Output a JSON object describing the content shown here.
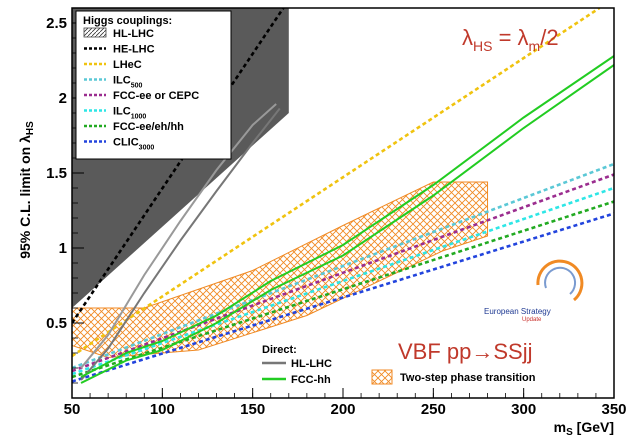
{
  "chart_data": {
    "type": "line",
    "xlabel": "m",
    "xlabel_sub": "S",
    "xlabel_unit": " [GeV]",
    "ylabel": "95% C.L. limit on λ",
    "ylabel_sub": "HS",
    "xlim": [
      50,
      350
    ],
    "ylim": [
      0,
      2.6
    ],
    "x_ticks": [
      "50",
      "100",
      "150",
      "200",
      "250",
      "300",
      "350"
    ],
    "y_ticks": [
      "0.5",
      "1",
      "1.5",
      "2",
      "2.5"
    ],
    "grid": false,
    "annotation_top": {
      "lambda": "λ",
      "hs": "HS",
      "eq": " = λ",
      "m": "m",
      "tail": "/2"
    },
    "annotation_vbf": "VBF pp→SSjj",
    "logo": {
      "line1": "European Strategy",
      "line2": "Update"
    },
    "legend_couplings": {
      "title": "Higgs couplings:",
      "entries": [
        {
          "label": "HL-LHC",
          "sub": "",
          "color": "#666666",
          "style": "hatch"
        },
        {
          "label": "HE-LHC",
          "sub": "",
          "color": "#000000",
          "style": "dotted"
        },
        {
          "label": "LHeC",
          "sub": "",
          "color": "#f0c30f",
          "style": "dotted"
        },
        {
          "label": "ILC",
          "sub": "500",
          "color": "#5bc8d6",
          "style": "dotted"
        },
        {
          "label": "FCC-ee or CEPC",
          "sub": "",
          "color": "#9b2d8f",
          "style": "dotted"
        },
        {
          "label": "ILC",
          "sub": "1000",
          "color": "#2ee6e6",
          "style": "dotted"
        },
        {
          "label": "FCC-ee/eh/hh",
          "sub": "",
          "color": "#22aa22",
          "style": "dotted"
        },
        {
          "label": "CLIC",
          "sub": "3000",
          "color": "#2244dd",
          "style": "dotted"
        }
      ]
    },
    "legend_direct": {
      "title": "Direct:",
      "entries": [
        {
          "label": "HL-LHC",
          "color": "#777777"
        },
        {
          "label": "FCC-hh",
          "color": "#22cc22"
        }
      ]
    },
    "legend_phase": {
      "label": "Two-step phase transition",
      "color": "#f08a24"
    },
    "series": [
      {
        "name": "HE-LHC",
        "color": "#000000",
        "dash": "dot",
        "x": [
          50,
          167
        ],
        "y": [
          0.5,
          2.6
        ]
      },
      {
        "name": "LHeC",
        "color": "#f0c30f",
        "dash": "dot",
        "x": [
          50,
          342
        ],
        "y": [
          0.28,
          2.6
        ]
      },
      {
        "name": "ILC500",
        "color": "#5bc8d6",
        "dash": "dot",
        "x": [
          50,
          350
        ],
        "y": [
          0.2,
          1.56
        ]
      },
      {
        "name": "FCC-ee or CEPC",
        "color": "#9b2d8f",
        "dash": "dot",
        "x": [
          50,
          350
        ],
        "y": [
          0.18,
          1.49
        ]
      },
      {
        "name": "ILC1000",
        "color": "#2ee6e6",
        "dash": "dot",
        "x": [
          50,
          350
        ],
        "y": [
          0.16,
          1.4
        ]
      },
      {
        "name": "FCC-ee/eh/hh",
        "color": "#22aa22",
        "dash": "dot",
        "x": [
          50,
          350
        ],
        "y": [
          0.14,
          1.31
        ]
      },
      {
        "name": "CLIC3000",
        "color": "#2244dd",
        "dash": "dot",
        "x": [
          50,
          350
        ],
        "y": [
          0.11,
          1.23
        ]
      },
      {
        "name": "Direct HL-LHC",
        "color": "#777777",
        "dash": "solid",
        "x": [
          55,
          70,
          90,
          110,
          130,
          150,
          165
        ],
        "y": [
          0.12,
          0.33,
          0.7,
          1.05,
          1.38,
          1.7,
          1.93
        ]
      },
      {
        "name": "Direct HL-LHC (upper edge)",
        "color": "#999999",
        "dash": "solid",
        "x": [
          55,
          70,
          90,
          110,
          130,
          150,
          163
        ],
        "y": [
          0.2,
          0.42,
          0.82,
          1.18,
          1.52,
          1.82,
          1.96
        ]
      },
      {
        "name": "Direct FCC-hh",
        "color": "#22cc22",
        "dash": "solid",
        "x": [
          55,
          80,
          100,
          130,
          160,
          200,
          250,
          300,
          350
        ],
        "y": [
          0.1,
          0.25,
          0.32,
          0.5,
          0.72,
          0.95,
          1.35,
          1.8,
          2.22
        ]
      },
      {
        "name": "Direct FCC-hh (upper edge)",
        "color": "#22cc22",
        "dash": "solid",
        "x": [
          55,
          80,
          100,
          130,
          160,
          200,
          250,
          300,
          350
        ],
        "y": [
          0.14,
          0.3,
          0.38,
          0.55,
          0.78,
          1.02,
          1.42,
          1.87,
          2.28
        ]
      }
    ],
    "excluded_region": {
      "x": [
        50,
        50,
        75,
        170,
        170,
        50
      ],
      "y": [
        0.6,
        2.6,
        2.6,
        2.6,
        1.9,
        0.6
      ]
    },
    "phase_region": {
      "x": [
        50,
        70,
        120,
        180,
        255,
        280,
        280,
        250,
        200,
        150,
        90,
        50
      ],
      "y": [
        0.35,
        0.27,
        0.32,
        0.55,
        0.98,
        1.08,
        1.44,
        1.44,
        1.15,
        0.85,
        0.6,
        0.6
      ]
    }
  }
}
